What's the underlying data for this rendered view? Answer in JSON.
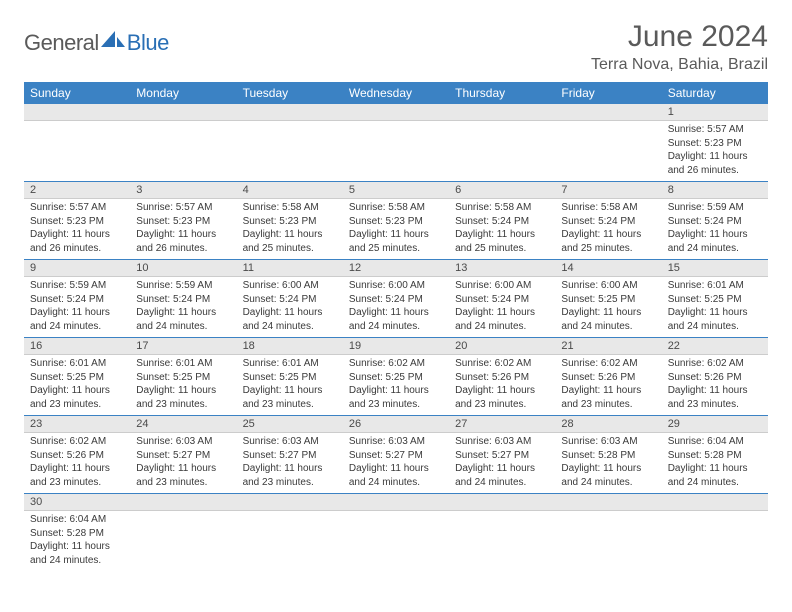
{
  "brand": {
    "part1": "General",
    "part2": "Blue"
  },
  "title": "June 2024",
  "location": "Terra Nova, Bahia, Brazil",
  "colors": {
    "header_bg": "#3b82c4",
    "header_text": "#ffffff",
    "daynum_bg": "#e8e8e8",
    "row_divider": "#3b82c4",
    "text": "#3a3a3a",
    "title_text": "#5a5a5a",
    "brand_gray": "#5a5a5a",
    "brand_blue": "#2a6fb5"
  },
  "day_headers": [
    "Sunday",
    "Monday",
    "Tuesday",
    "Wednesday",
    "Thursday",
    "Friday",
    "Saturday"
  ],
  "weeks": [
    [
      null,
      null,
      null,
      null,
      null,
      null,
      {
        "n": "1",
        "sunrise": "Sunrise: 5:57 AM",
        "sunset": "Sunset: 5:23 PM",
        "daylight1": "Daylight: 11 hours",
        "daylight2": "and 26 minutes."
      }
    ],
    [
      {
        "n": "2",
        "sunrise": "Sunrise: 5:57 AM",
        "sunset": "Sunset: 5:23 PM",
        "daylight1": "Daylight: 11 hours",
        "daylight2": "and 26 minutes."
      },
      {
        "n": "3",
        "sunrise": "Sunrise: 5:57 AM",
        "sunset": "Sunset: 5:23 PM",
        "daylight1": "Daylight: 11 hours",
        "daylight2": "and 26 minutes."
      },
      {
        "n": "4",
        "sunrise": "Sunrise: 5:58 AM",
        "sunset": "Sunset: 5:23 PM",
        "daylight1": "Daylight: 11 hours",
        "daylight2": "and 25 minutes."
      },
      {
        "n": "5",
        "sunrise": "Sunrise: 5:58 AM",
        "sunset": "Sunset: 5:23 PM",
        "daylight1": "Daylight: 11 hours",
        "daylight2": "and 25 minutes."
      },
      {
        "n": "6",
        "sunrise": "Sunrise: 5:58 AM",
        "sunset": "Sunset: 5:24 PM",
        "daylight1": "Daylight: 11 hours",
        "daylight2": "and 25 minutes."
      },
      {
        "n": "7",
        "sunrise": "Sunrise: 5:58 AM",
        "sunset": "Sunset: 5:24 PM",
        "daylight1": "Daylight: 11 hours",
        "daylight2": "and 25 minutes."
      },
      {
        "n": "8",
        "sunrise": "Sunrise: 5:59 AM",
        "sunset": "Sunset: 5:24 PM",
        "daylight1": "Daylight: 11 hours",
        "daylight2": "and 24 minutes."
      }
    ],
    [
      {
        "n": "9",
        "sunrise": "Sunrise: 5:59 AM",
        "sunset": "Sunset: 5:24 PM",
        "daylight1": "Daylight: 11 hours",
        "daylight2": "and 24 minutes."
      },
      {
        "n": "10",
        "sunrise": "Sunrise: 5:59 AM",
        "sunset": "Sunset: 5:24 PM",
        "daylight1": "Daylight: 11 hours",
        "daylight2": "and 24 minutes."
      },
      {
        "n": "11",
        "sunrise": "Sunrise: 6:00 AM",
        "sunset": "Sunset: 5:24 PM",
        "daylight1": "Daylight: 11 hours",
        "daylight2": "and 24 minutes."
      },
      {
        "n": "12",
        "sunrise": "Sunrise: 6:00 AM",
        "sunset": "Sunset: 5:24 PM",
        "daylight1": "Daylight: 11 hours",
        "daylight2": "and 24 minutes."
      },
      {
        "n": "13",
        "sunrise": "Sunrise: 6:00 AM",
        "sunset": "Sunset: 5:24 PM",
        "daylight1": "Daylight: 11 hours",
        "daylight2": "and 24 minutes."
      },
      {
        "n": "14",
        "sunrise": "Sunrise: 6:00 AM",
        "sunset": "Sunset: 5:25 PM",
        "daylight1": "Daylight: 11 hours",
        "daylight2": "and 24 minutes."
      },
      {
        "n": "15",
        "sunrise": "Sunrise: 6:01 AM",
        "sunset": "Sunset: 5:25 PM",
        "daylight1": "Daylight: 11 hours",
        "daylight2": "and 24 minutes."
      }
    ],
    [
      {
        "n": "16",
        "sunrise": "Sunrise: 6:01 AM",
        "sunset": "Sunset: 5:25 PM",
        "daylight1": "Daylight: 11 hours",
        "daylight2": "and 23 minutes."
      },
      {
        "n": "17",
        "sunrise": "Sunrise: 6:01 AM",
        "sunset": "Sunset: 5:25 PM",
        "daylight1": "Daylight: 11 hours",
        "daylight2": "and 23 minutes."
      },
      {
        "n": "18",
        "sunrise": "Sunrise: 6:01 AM",
        "sunset": "Sunset: 5:25 PM",
        "daylight1": "Daylight: 11 hours",
        "daylight2": "and 23 minutes."
      },
      {
        "n": "19",
        "sunrise": "Sunrise: 6:02 AM",
        "sunset": "Sunset: 5:25 PM",
        "daylight1": "Daylight: 11 hours",
        "daylight2": "and 23 minutes."
      },
      {
        "n": "20",
        "sunrise": "Sunrise: 6:02 AM",
        "sunset": "Sunset: 5:26 PM",
        "daylight1": "Daylight: 11 hours",
        "daylight2": "and 23 minutes."
      },
      {
        "n": "21",
        "sunrise": "Sunrise: 6:02 AM",
        "sunset": "Sunset: 5:26 PM",
        "daylight1": "Daylight: 11 hours",
        "daylight2": "and 23 minutes."
      },
      {
        "n": "22",
        "sunrise": "Sunrise: 6:02 AM",
        "sunset": "Sunset: 5:26 PM",
        "daylight1": "Daylight: 11 hours",
        "daylight2": "and 23 minutes."
      }
    ],
    [
      {
        "n": "23",
        "sunrise": "Sunrise: 6:02 AM",
        "sunset": "Sunset: 5:26 PM",
        "daylight1": "Daylight: 11 hours",
        "daylight2": "and 23 minutes."
      },
      {
        "n": "24",
        "sunrise": "Sunrise: 6:03 AM",
        "sunset": "Sunset: 5:27 PM",
        "daylight1": "Daylight: 11 hours",
        "daylight2": "and 23 minutes."
      },
      {
        "n": "25",
        "sunrise": "Sunrise: 6:03 AM",
        "sunset": "Sunset: 5:27 PM",
        "daylight1": "Daylight: 11 hours",
        "daylight2": "and 23 minutes."
      },
      {
        "n": "26",
        "sunrise": "Sunrise: 6:03 AM",
        "sunset": "Sunset: 5:27 PM",
        "daylight1": "Daylight: 11 hours",
        "daylight2": "and 24 minutes."
      },
      {
        "n": "27",
        "sunrise": "Sunrise: 6:03 AM",
        "sunset": "Sunset: 5:27 PM",
        "daylight1": "Daylight: 11 hours",
        "daylight2": "and 24 minutes."
      },
      {
        "n": "28",
        "sunrise": "Sunrise: 6:03 AM",
        "sunset": "Sunset: 5:28 PM",
        "daylight1": "Daylight: 11 hours",
        "daylight2": "and 24 minutes."
      },
      {
        "n": "29",
        "sunrise": "Sunrise: 6:04 AM",
        "sunset": "Sunset: 5:28 PM",
        "daylight1": "Daylight: 11 hours",
        "daylight2": "and 24 minutes."
      }
    ],
    [
      {
        "n": "30",
        "sunrise": "Sunrise: 6:04 AM",
        "sunset": "Sunset: 5:28 PM",
        "daylight1": "Daylight: 11 hours",
        "daylight2": "and 24 minutes."
      },
      null,
      null,
      null,
      null,
      null,
      null
    ]
  ]
}
